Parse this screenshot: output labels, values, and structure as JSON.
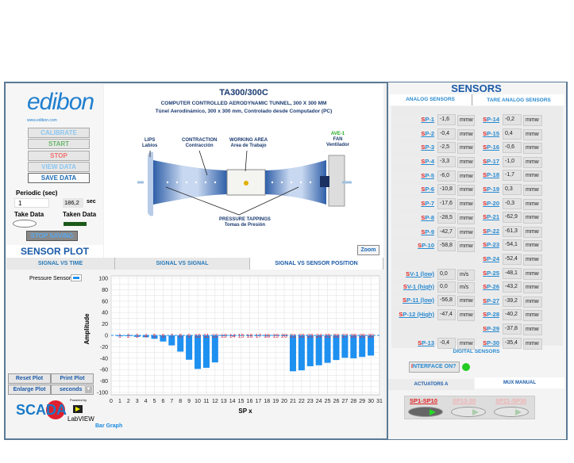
{
  "left": {
    "logo": "edibon",
    "url": "www.edibon.com",
    "buttons": [
      "CALIBRATE",
      "START",
      "STOP",
      "VIEW DATA",
      "SAVE DATA"
    ],
    "periodic_label": "Periodic (sec)",
    "periodic_value": "1",
    "elapsed": "186,2",
    "elapsed_unit": "sec",
    "take_data": "Take Data",
    "taken_data": "Taken Data",
    "stop_saving": "STOP SAVING"
  },
  "diagram": {
    "code": "TA300/300C",
    "title_en": "COMPUTER CONTROLLED AERODYNAMIC TUNNEL, 300 X 300 MM",
    "title_es": "Túnel Aerodinámico, 300 x 300 mm, Controlado desde Computador (PC)",
    "lips": "LIPS",
    "lips_es": "Labios",
    "contraction": "CONTRACTION",
    "contraction_es": "Contracción",
    "working": "WORKING AREA",
    "working_es": "Area de Trabajo",
    "fan_id": "AVE-1",
    "fan": "FAN",
    "fan_es": "Ventilador",
    "tappings": "PRESSURE TAPPINGS",
    "tappings_es": "Tomas de Presión",
    "zoom": "Zoom"
  },
  "plot": {
    "title": "SENSOR PLOT",
    "tabs": [
      "SIGNAL VS TIME",
      "SIGNAL VS SIGNAL",
      "SIGNAL VS SENSOR POSITION"
    ],
    "legend": "Pressure Sensors",
    "reset": "Reset Plot",
    "print": "Print Plot",
    "enlarge": "Enlarge Plot",
    "units": "seconds",
    "graph_label": "Bar Graph",
    "scada": "SCADA",
    "powered_by": "Powered by",
    "labview": "LabVIEW"
  },
  "chart_data": {
    "type": "bar",
    "xlabel": "SP x",
    "ylabel": "Amplitude",
    "xlim": [
      0,
      31
    ],
    "ylim": [
      -100,
      100
    ],
    "yticks": [
      100,
      80,
      60,
      40,
      20,
      0,
      -20,
      -40,
      -60,
      -80,
      -100
    ],
    "grid": true,
    "categories": [
      1,
      2,
      3,
      4,
      5,
      6,
      7,
      8,
      9,
      10,
      11,
      12,
      13,
      14,
      15,
      16,
      17,
      18,
      19,
      20,
      21,
      22,
      23,
      24,
      25,
      26,
      27,
      28,
      29,
      30
    ],
    "values": [
      -1.6,
      -0.4,
      -2.5,
      -3.3,
      -6.0,
      -10.8,
      -17.6,
      -28.5,
      -42.7,
      -58.8,
      -56.8,
      -47.4,
      -0.4,
      -0.2,
      0.4,
      -0.6,
      -1.0,
      -1.7,
      0.3,
      -0.3,
      -62.9,
      -61.3,
      -54.1,
      -52.4,
      -48.1,
      -43.2,
      -39.2,
      -40.2,
      -37.8,
      -35.4
    ],
    "bar_color": "#1e90f0",
    "label_color": "#e03040"
  },
  "sensors": {
    "title": "SENSORS",
    "tabs": [
      "ANALOG SENSORS",
      "TARE ANALOG SENSORS"
    ],
    "left": [
      {
        "p": "S",
        "l": "P-1",
        "v": "-1,6",
        "u": "mmw"
      },
      {
        "p": "S",
        "l": "P-2",
        "v": "-0,4",
        "u": "mmw"
      },
      {
        "p": "S",
        "l": "P-3",
        "v": "-2,5",
        "u": "mmw"
      },
      {
        "p": "S",
        "l": "P-4",
        "v": "-3,3",
        "u": "mmw"
      },
      {
        "p": "S",
        "l": "P-5",
        "v": "-6,0",
        "u": "mmw"
      },
      {
        "p": "S",
        "l": "P-6",
        "v": "-10,8",
        "u": "mmw"
      },
      {
        "p": "S",
        "l": "P-7",
        "v": "-17,6",
        "u": "mmw"
      },
      {
        "p": "S",
        "l": "P-8",
        "v": "-28,5",
        "u": "mmw"
      },
      {
        "p": "S",
        "l": "P-9",
        "v": "-42,7",
        "u": "mmw"
      },
      {
        "p": "S",
        "l": "P-10",
        "v": "-58,8",
        "u": "mmw"
      },
      {
        "p": "S",
        "l": "V-1 (low)",
        "v": "0,0",
        "u": "m/s"
      },
      {
        "p": "S",
        "l": "V-1 (high)",
        "v": "0,0",
        "u": "m/s"
      },
      {
        "p": "S",
        "l": "P-11 (low)",
        "v": "-56,8",
        "u": "mmw"
      },
      {
        "p": "S",
        "l": "P-12 (High)",
        "v": "-47,4",
        "u": "mmw"
      },
      {
        "p": "S",
        "l": "P-13",
        "v": "-0,4",
        "u": "mmw"
      }
    ],
    "right": [
      {
        "p": "S",
        "l": "P-14",
        "v": "-0,2",
        "u": "mmw"
      },
      {
        "p": "S",
        "l": "P-15",
        "v": "0,4",
        "u": "mmw"
      },
      {
        "p": "S",
        "l": "P-16",
        "v": "-0,6",
        "u": "mmw"
      },
      {
        "p": "S",
        "l": "P-17",
        "v": "-1,0",
        "u": "mmw"
      },
      {
        "p": "S",
        "l": "P-18",
        "v": "-1,7",
        "u": "mmw"
      },
      {
        "p": "S",
        "l": "P-19",
        "v": "0,3",
        "u": "mmw"
      },
      {
        "p": "S",
        "l": "P-20",
        "v": "-0,3",
        "u": "mmw"
      },
      {
        "p": "S",
        "l": "P-21",
        "v": "-62,9",
        "u": "mmw"
      },
      {
        "p": "S",
        "l": "P-22",
        "v": "-61,3",
        "u": "mmw"
      },
      {
        "p": "S",
        "l": "P-23",
        "v": "-54,1",
        "u": "mmw"
      },
      {
        "p": "S",
        "l": "P-24",
        "v": "-52,4",
        "u": "mmw"
      },
      {
        "p": "S",
        "l": "P-25",
        "v": "-48,1",
        "u": "mmw"
      },
      {
        "p": "S",
        "l": "P-26",
        "v": "-43,2",
        "u": "mmw"
      },
      {
        "p": "S",
        "l": "P-27",
        "v": "-39,2",
        "u": "mmw"
      },
      {
        "p": "S",
        "l": "P-28",
        "v": "-40,2",
        "u": "mmw"
      },
      {
        "p": "S",
        "l": "P-29",
        "v": "-37,8",
        "u": "mmw"
      },
      {
        "p": "S",
        "l": "P-30",
        "v": "-35,4",
        "u": "mmw"
      }
    ],
    "digital_title": "DIGITAL SENSORS",
    "interface_p": "I",
    "interface": "NTERFACE ON?",
    "led_color": "#22cc22",
    "act_tabs": [
      "ACTUATORS A",
      "MUX MANUAL"
    ],
    "mux": [
      "SP1-SP10",
      "SP13-20",
      "SP21-SP30"
    ]
  }
}
